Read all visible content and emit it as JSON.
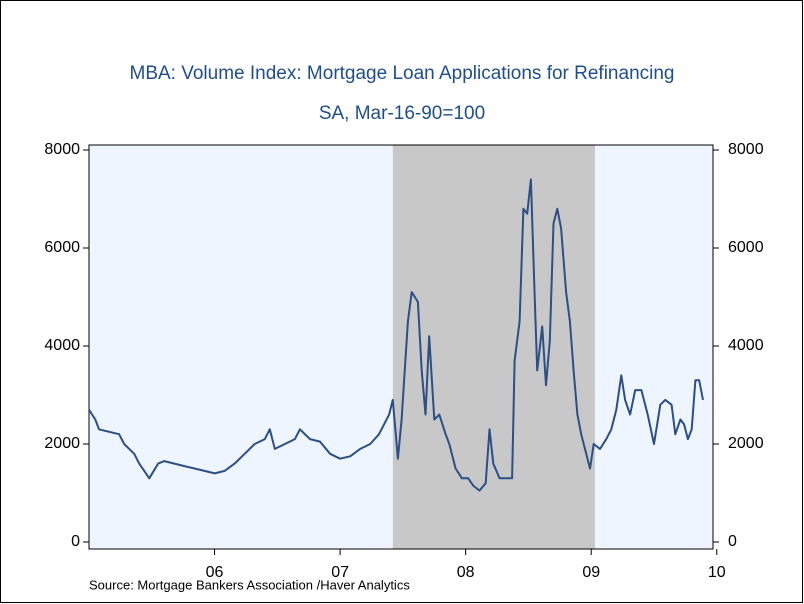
{
  "chart_data": {
    "type": "line",
    "title": "MBA: Volume Index: Mortgage Loan Applications for Refinancing",
    "subtitle": "SA, Mar-16-90=100",
    "source": "Source:  Mortgage Bankers Association /Haver Analytics",
    "x": [
      2005.5,
      2005.55,
      2005.58,
      2005.66,
      2005.74,
      2005.78,
      2005.86,
      2005.9,
      2005.98,
      2006.05,
      2006.1,
      2006.18,
      2006.26,
      2006.34,
      2006.42,
      2006.5,
      2006.58,
      2006.66,
      2006.74,
      2006.82,
      2006.9,
      2006.94,
      2006.98,
      2007.06,
      2007.14,
      2007.18,
      2007.26,
      2007.34,
      2007.42,
      2007.5,
      2007.58,
      2007.66,
      2007.74,
      2007.81,
      2007.89,
      2007.92,
      2007.96,
      2007.99,
      2008.04,
      2008.07,
      2008.12,
      2008.15,
      2008.18,
      2008.21,
      2008.25,
      2008.29,
      2008.34,
      2008.37,
      2008.42,
      2008.47,
      2008.52,
      2008.56,
      2008.61,
      2008.66,
      2008.69,
      2008.72,
      2008.77,
      2008.83,
      2008.87,
      2008.89,
      2008.93,
      2008.96,
      2008.99,
      2009.02,
      2009.05,
      2009.07,
      2009.11,
      2009.14,
      2009.17,
      2009.2,
      2009.23,
      2009.26,
      2009.3,
      2009.33,
      2009.36,
      2009.39,
      2009.42,
      2009.46,
      2009.49,
      2009.52,
      2009.57,
      2009.62,
      2009.66,
      2009.7,
      2009.74,
      2009.77,
      2009.81,
      2009.85,
      2009.9,
      2009.95,
      2010.0,
      2010.05,
      2010.09,
      2010.14,
      2010.17,
      2010.21,
      2010.24,
      2010.27,
      2010.3,
      2010.33,
      2010.36,
      2010.39
    ],
    "series": [
      {
        "color": "#2b4f86",
        "values": [
          2700,
          2500,
          2300,
          2250,
          2200,
          2000,
          1800,
          1600,
          1300,
          1600,
          1650,
          1600,
          1550,
          1500,
          1450,
          1400,
          1450,
          1600,
          1800,
          2000,
          2100,
          2300,
          1900,
          2000,
          2100,
          2300,
          2100,
          2050,
          1800,
          1700,
          1750,
          1900,
          2000,
          2200,
          2600,
          2900,
          1700,
          2500,
          4500,
          5100,
          4900,
          3500,
          2600,
          4200,
          2500,
          2600,
          2200,
          2000,
          1500,
          1300,
          1300,
          1150,
          1050,
          1200,
          2300,
          1600,
          1300,
          1300,
          1300,
          3700,
          4500,
          6800,
          6700,
          7400,
          5000,
          3500,
          4400,
          3200,
          4100,
          6500,
          6800,
          6400,
          5100,
          4500,
          3500,
          2600,
          2200,
          1800,
          1500,
          2000,
          1900,
          2100,
          2300,
          2700,
          3400,
          2900,
          2600,
          3100,
          3100,
          2600,
          2000,
          2800,
          2900,
          2800,
          2200,
          2500,
          2400,
          2100,
          2300,
          3300,
          3300,
          2900
        ]
      }
    ],
    "xlim": [
      2005.5,
      2010.47
    ],
    "xticks": [
      {
        "value": 2006.5,
        "label": "06"
      },
      {
        "value": 2007.5,
        "label": "07"
      },
      {
        "value": 2008.5,
        "label": "08"
      },
      {
        "value": 2009.5,
        "label": "09"
      },
      {
        "value": 2010.5,
        "label": "10"
      }
    ],
    "ylim": [
      0,
      8000
    ],
    "yticks": [
      0,
      2000,
      4000,
      6000,
      8000
    ],
    "y2lim": [
      0,
      8000
    ],
    "y2ticks": [
      0,
      2000,
      4000,
      6000,
      8000
    ],
    "recession": [
      2007.92,
      2009.53
    ],
    "plot_color": "#eef5ff",
    "recession_color": "#c8c8c8"
  }
}
